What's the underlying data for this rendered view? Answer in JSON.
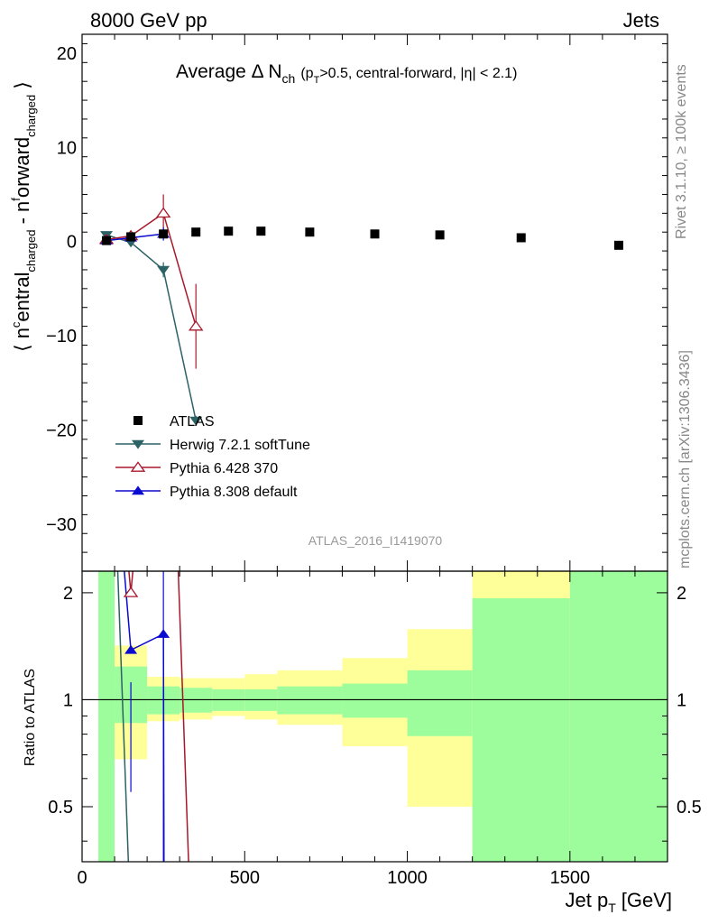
{
  "header": {
    "left": "8000 GeV pp",
    "right": "Jets"
  },
  "side_labels": {
    "rivet": "Rivet 3.1.10, ≥ 100k events",
    "mcplots": "mcplots.cern.ch [arXiv:1306.3436]"
  },
  "chart_data": {
    "type": "scatter",
    "title": "Average Δ N",
    "title_sub": "ch",
    "title_cond": "(p",
    "title_cond_sub": "T",
    "title_cond_rest": ">0.5, central-forward, |η| < 2.1)",
    "watermark": "ATLAS_2016_I1419070",
    "ylabel": "⟨ n",
    "xlabel": "Jet p",
    "xlabel_sub": "T",
    "xlabel_unit": "[GeV]",
    "ratio_ylabel": "Ratio to ATLAS",
    "xlim": [
      0,
      1800
    ],
    "ylim": [
      -35,
      22
    ],
    "ratio_ylim": [
      0.35,
      2.3
    ],
    "x_ticks": [
      0,
      500,
      1000,
      1500
    ],
    "y_ticks": [
      -30,
      -20,
      -10,
      0,
      10,
      20
    ],
    "ratio_ticks": [
      0.5,
      1,
      2
    ],
    "legend_position": "lower-left",
    "data": {
      "name": "ATLAS",
      "x": [
        75,
        150,
        250,
        350,
        450,
        550,
        700,
        900,
        1100,
        1350,
        1650
      ],
      "y": [
        0.1,
        0.5,
        0.8,
        1.0,
        1.1,
        1.1,
        1.0,
        0.8,
        0.7,
        0.4,
        -0.4
      ]
    },
    "series": [
      {
        "name": "Herwig 7.2.1 softTune",
        "color": "#2b6266",
        "marker": "triangle-down",
        "x": [
          75,
          150,
          250,
          350
        ],
        "y": [
          0.7,
          -0.1,
          -3.0,
          -19.0
        ],
        "err": [
          0.2,
          0.3,
          0.8,
          0.5
        ]
      },
      {
        "name": "Pythia 6.428 370",
        "color": "#a8182c",
        "marker": "triangle-open",
        "x": [
          75,
          150,
          250,
          350
        ],
        "y": [
          0.2,
          0.6,
          3.0,
          -9.0
        ],
        "err": [
          0.2,
          0.3,
          2.0,
          4.5
        ]
      },
      {
        "name": "Pythia 8.308 default",
        "color": "#0a0ad0",
        "marker": "triangle-up",
        "x": [
          75,
          150,
          250
        ],
        "y": [
          0.1,
          0.4,
          0.8
        ],
        "err": [
          0.1,
          0.2,
          0.7
        ]
      }
    ],
    "ratio_bands": [
      {
        "x0": 50,
        "x1": 100,
        "stat": [
          0.3,
          2.4
        ],
        "total": [
          0.3,
          2.4
        ]
      },
      {
        "x0": 100,
        "x1": 200,
        "stat": [
          0.86,
          1.24
        ],
        "total": [
          0.68,
          1.42
        ]
      },
      {
        "x0": 200,
        "x1": 300,
        "stat": [
          0.91,
          1.09
        ],
        "total": [
          0.87,
          1.16
        ]
      },
      {
        "x0": 300,
        "x1": 400,
        "stat": [
          0.92,
          1.08
        ],
        "total": [
          0.88,
          1.15
        ]
      },
      {
        "x0": 400,
        "x1": 500,
        "stat": [
          0.93,
          1.07
        ],
        "total": [
          0.9,
          1.15
        ]
      },
      {
        "x0": 500,
        "x1": 600,
        "stat": [
          0.93,
          1.07
        ],
        "total": [
          0.88,
          1.18
        ]
      },
      {
        "x0": 600,
        "x1": 800,
        "stat": [
          0.91,
          1.09
        ],
        "total": [
          0.85,
          1.21
        ]
      },
      {
        "x0": 800,
        "x1": 1000,
        "stat": [
          0.89,
          1.11
        ],
        "total": [
          0.74,
          1.31
        ]
      },
      {
        "x0": 1000,
        "x1": 1200,
        "stat": [
          0.79,
          1.21
        ],
        "total": [
          0.5,
          1.58
        ]
      },
      {
        "x0": 1200,
        "x1": 1500,
        "stat": [
          0.3,
          1.93
        ],
        "total": [
          0.3,
          2.4
        ]
      },
      {
        "x0": 1500,
        "x1": 1800,
        "stat": [
          0.3,
          2.4
        ],
        "total": [
          0.3,
          2.4
        ]
      }
    ],
    "ratio_series": [
      {
        "name": "Pythia 8.308 default",
        "x": [
          150,
          250
        ],
        "y": [
          1.38,
          1.53
        ]
      },
      {
        "name": "Pythia 6.428 370",
        "x": [
          150
        ],
        "y": [
          2.0
        ]
      }
    ],
    "colors": {
      "stat_band": "#9dfd9d",
      "total_band": "#ffff99"
    }
  }
}
